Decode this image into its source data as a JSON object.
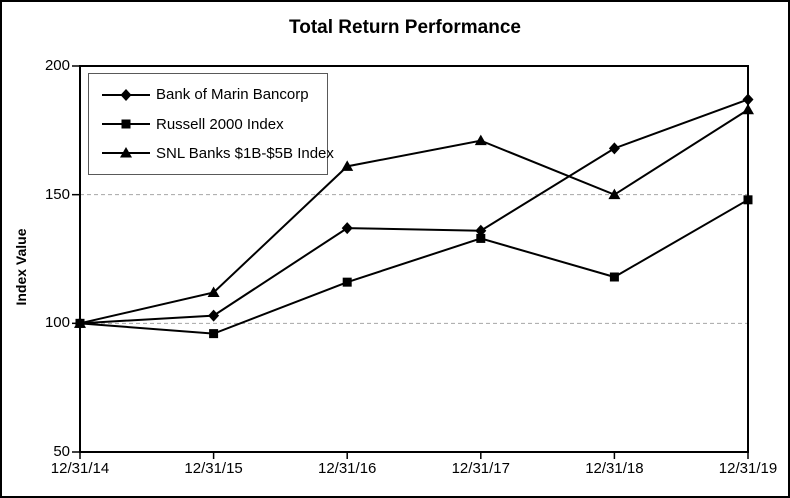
{
  "chart_data": {
    "type": "line",
    "title": "Total Return Performance",
    "xlabel": "",
    "ylabel": "Index Value",
    "categories": [
      "12/31/14",
      "12/31/15",
      "12/31/16",
      "12/31/17",
      "12/31/18",
      "12/31/19"
    ],
    "series": [
      {
        "name": "Bank of Marin Bancorp",
        "marker": "diamond",
        "color": "#000000",
        "values": [
          100,
          103,
          137,
          136,
          168,
          187
        ]
      },
      {
        "name": "Russell 2000 Index",
        "marker": "square",
        "color": "#000000",
        "values": [
          100,
          96,
          116,
          133,
          118,
          148
        ]
      },
      {
        "name": "SNL Banks $1B-$5B Index",
        "marker": "triangle",
        "color": "#000000",
        "values": [
          100,
          112,
          161,
          171,
          150,
          183
        ]
      }
    ],
    "ylim": [
      50,
      200
    ],
    "yticks": [
      50,
      100,
      150,
      200
    ],
    "gridline_values": [
      100,
      150
    ],
    "grid": "horizontal-dashed",
    "legend_position": "top-left-inside",
    "styles": {
      "line_color": "#000000",
      "grid_color": "#a6a6a6",
      "axis_color": "#000000",
      "background": "#ffffff"
    }
  }
}
